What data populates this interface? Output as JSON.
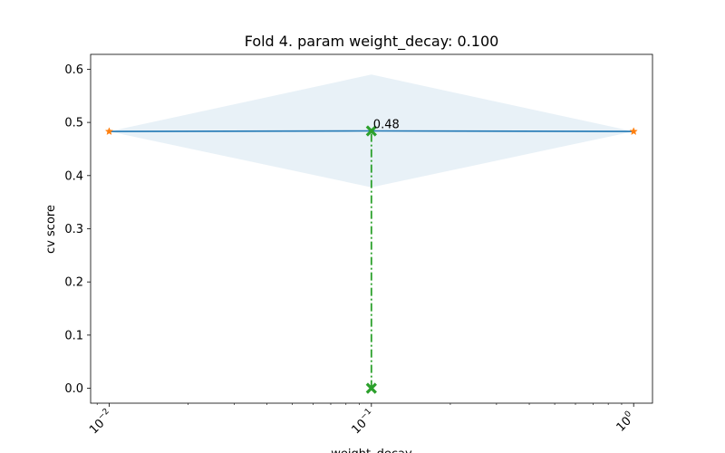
{
  "chart_data": {
    "type": "line",
    "title": "Fold 4. param weight_decay: 0.100",
    "xlabel": "weight_decay",
    "ylabel": "cv score",
    "xscale": "log",
    "xlim": [
      0.0085,
      1.18
    ],
    "ylim": [
      -0.028,
      0.628
    ],
    "xticks": [
      {
        "value": 0.01,
        "base": "10",
        "exp": "−2"
      },
      {
        "value": 0.1,
        "base": "10",
        "exp": "−1"
      },
      {
        "value": 1,
        "base": "10",
        "exp": "0"
      }
    ],
    "yticks": [
      {
        "value": 0.0,
        "label": "0.0"
      },
      {
        "value": 0.1,
        "label": "0.1"
      },
      {
        "value": 0.2,
        "label": "0.2"
      },
      {
        "value": 0.3,
        "label": "0.3"
      },
      {
        "value": 0.4,
        "label": "0.4"
      },
      {
        "value": 0.5,
        "label": "0.5"
      },
      {
        "value": 0.6,
        "label": "0.6"
      }
    ],
    "series": [
      {
        "kind": "band",
        "color": "#1f77b4",
        "opacity": 0.1,
        "x": [
          0.01,
          0.1,
          1
        ],
        "upper": [
          0.483,
          0.59,
          0.483
        ],
        "lower": [
          0.483,
          0.378,
          0.483
        ]
      },
      {
        "kind": "line",
        "color": "#1f77b4",
        "x": [
          0.01,
          0.1,
          1
        ],
        "y": [
          0.483,
          0.484,
          0.483
        ]
      },
      {
        "kind": "markers",
        "marker": "star",
        "color": "#ff7f0e",
        "x": [
          0.01,
          1
        ],
        "y": [
          0.483,
          0.483
        ]
      },
      {
        "kind": "vline",
        "marker": "x",
        "color": "#2ca02c",
        "style": "dashdot",
        "x": [
          0.1,
          0.1
        ],
        "y": [
          0.0,
          0.484
        ]
      }
    ],
    "annotation": {
      "text": "0.48",
      "x": 0.1,
      "y": 0.484
    },
    "grid": false,
    "legend": "none"
  }
}
